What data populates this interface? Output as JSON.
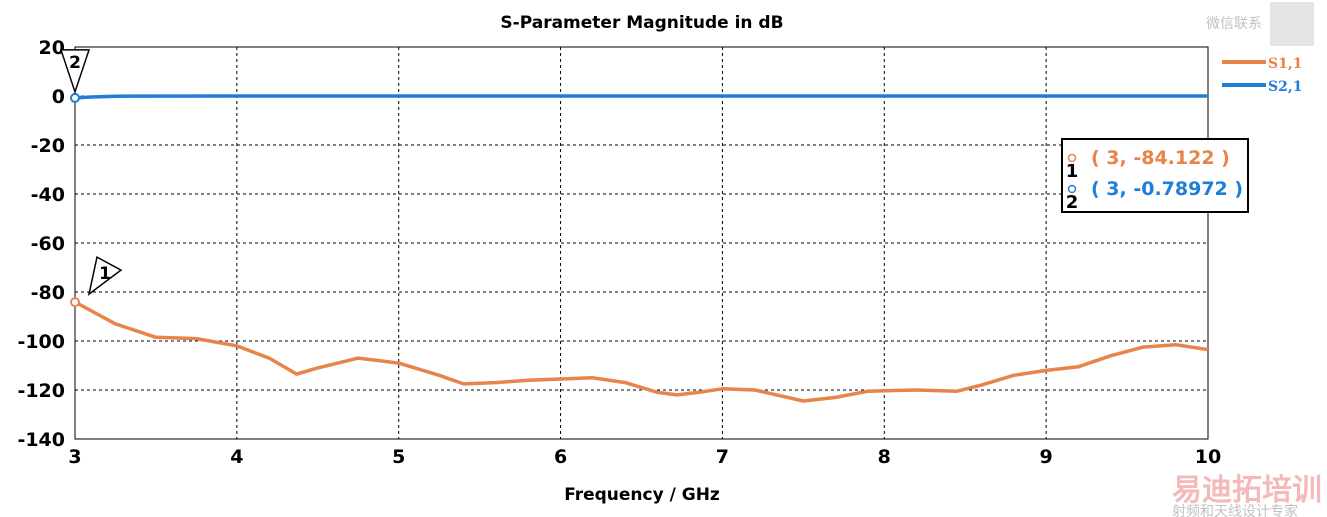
{
  "chart_data": {
    "type": "line",
    "title": "S-Parameter Magnitude in dB",
    "xlabel": "Frequency / GHz",
    "ylabel": "",
    "xlim": [
      3,
      10
    ],
    "ylim": [
      -140,
      20
    ],
    "xticks": [
      3,
      4,
      5,
      6,
      7,
      8,
      9,
      10
    ],
    "yticks": [
      20,
      0,
      -20,
      -40,
      -60,
      -80,
      -100,
      -120,
      -140
    ],
    "grid": true,
    "legend_position": "top-right, outside",
    "series": [
      {
        "name": "S1,1",
        "color": "#e8834a",
        "x": [
          3,
          3.25,
          3.5,
          3.75,
          4,
          4.2,
          4.37,
          4.5,
          4.75,
          5,
          5.25,
          5.4,
          5.6,
          5.8,
          6,
          6.2,
          6.4,
          6.6,
          6.72,
          6.85,
          7,
          7.2,
          7.5,
          7.7,
          7.9,
          8.2,
          8.45,
          8.6,
          8.8,
          9,
          9.2,
          9.4,
          9.6,
          9.8,
          10
        ],
        "y": [
          -84.1,
          -93,
          -98.5,
          -99,
          -102,
          -107,
          -113.5,
          -111,
          -107,
          -109,
          -114,
          -117.5,
          -117,
          -116,
          -115.5,
          -115,
          -117,
          -121,
          -122,
          -121,
          -119.5,
          -120,
          -124.5,
          -123,
          -120.5,
          -120,
          -120.5,
          -118,
          -114,
          -112,
          -110.5,
          -106,
          -102.5,
          -101.5,
          -103.5
        ]
      },
      {
        "name": "S2,1",
        "color": "#1f7fd8",
        "x": [
          3,
          3.1,
          3.25,
          4,
          5,
          6,
          7,
          8,
          9,
          10
        ],
        "y": [
          -0.79,
          -0.4,
          -0.1,
          0,
          0,
          0,
          0,
          0,
          0,
          0
        ]
      }
    ],
    "markers": [
      {
        "id": "1",
        "series": "S1,1",
        "x": 3,
        "y": -84.122,
        "label": "( 3, -84.122 )"
      },
      {
        "id": "2",
        "series": "S2,1",
        "x": 3,
        "y": -0.78972,
        "label": "( 3, -0.78972 )"
      }
    ]
  },
  "watermark": {
    "line1": "易迪拓培训",
    "line2": "射频和天线设计专家",
    "qr_caption": "微信联系"
  }
}
